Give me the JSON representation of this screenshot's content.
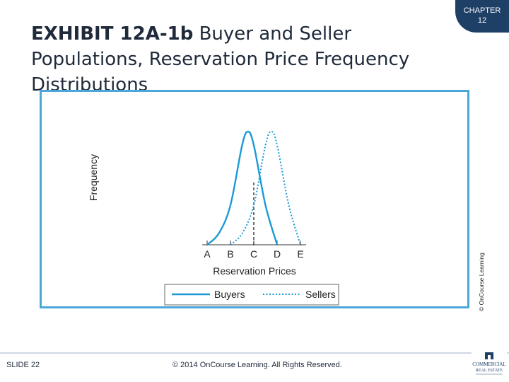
{
  "slide": {
    "title_lead": "EXHIBIT 12A-1b",
    "title_rest": " Buyer and Seller Populations, Reservation Price Frequency Distributions",
    "chapter_label": "CHAPTER",
    "chapter_number": "12",
    "credit": "© OnCourse Learning",
    "slide_number": "SLIDE 22",
    "copyright": "© 2014 OnCourse Learning. All Rights Reserved.",
    "logo_text_1": "COMMERCIAL",
    "logo_text_2": "REAL ESTATE"
  },
  "colors": {
    "buyers": "#1b9ad6",
    "sellers": "#1b9ad6",
    "frame": "#4ba7d8",
    "title": "#1f2a3a",
    "chapter_tab": "#1e3f66"
  },
  "chart_data": {
    "type": "line",
    "title": "",
    "xlabel": "Reservation Prices",
    "ylabel": "Frequency",
    "categories": [
      "A",
      "B",
      "C",
      "D",
      "E"
    ],
    "xlim": [
      0,
      4
    ],
    "ylim": [
      0,
      1
    ],
    "grid": false,
    "legend_position": "bottom",
    "series": [
      {
        "name": "Buyers",
        "style": "solid",
        "x": [
          0,
          0.5,
          1,
          1.5,
          1.75,
          2,
          2.5,
          3
        ],
        "y": [
          0,
          0.1,
          0.35,
          0.88,
          1.0,
          0.88,
          0.35,
          0
        ]
      },
      {
        "name": "Sellers",
        "style": "dotted",
        "x": [
          1,
          1.5,
          2,
          2.5,
          2.75,
          3,
          3.5,
          4
        ],
        "y": [
          0,
          0.1,
          0.35,
          0.88,
          1.0,
          0.88,
          0.35,
          0
        ]
      }
    ],
    "annotations": [
      {
        "type": "vertical-dashed-line",
        "x": 2,
        "y": 0.55
      }
    ]
  }
}
